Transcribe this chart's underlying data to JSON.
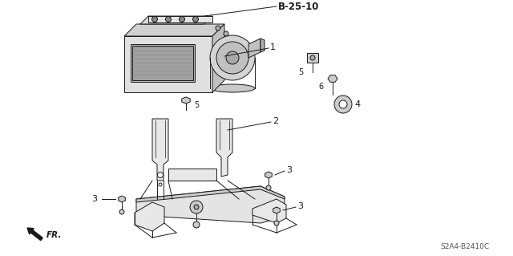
{
  "title": "B-25-10",
  "part_label_1": "1",
  "part_label_2": "2",
  "part_label_3": "3",
  "part_label_4": "4",
  "part_label_5": "5",
  "part_label_6": "6",
  "diagram_code": "S2A4-B2410C",
  "fr_label": "FR.",
  "bg_color": "#ffffff",
  "lc": "#1a1a1a",
  "lc_gray": "#888888",
  "lc_med": "#555555",
  "fill_light": "#e8e8e8",
  "fill_mid": "#cccccc",
  "fill_dark": "#aaaaaa",
  "fig_width": 6.4,
  "fig_height": 3.19,
  "dpi": 100
}
